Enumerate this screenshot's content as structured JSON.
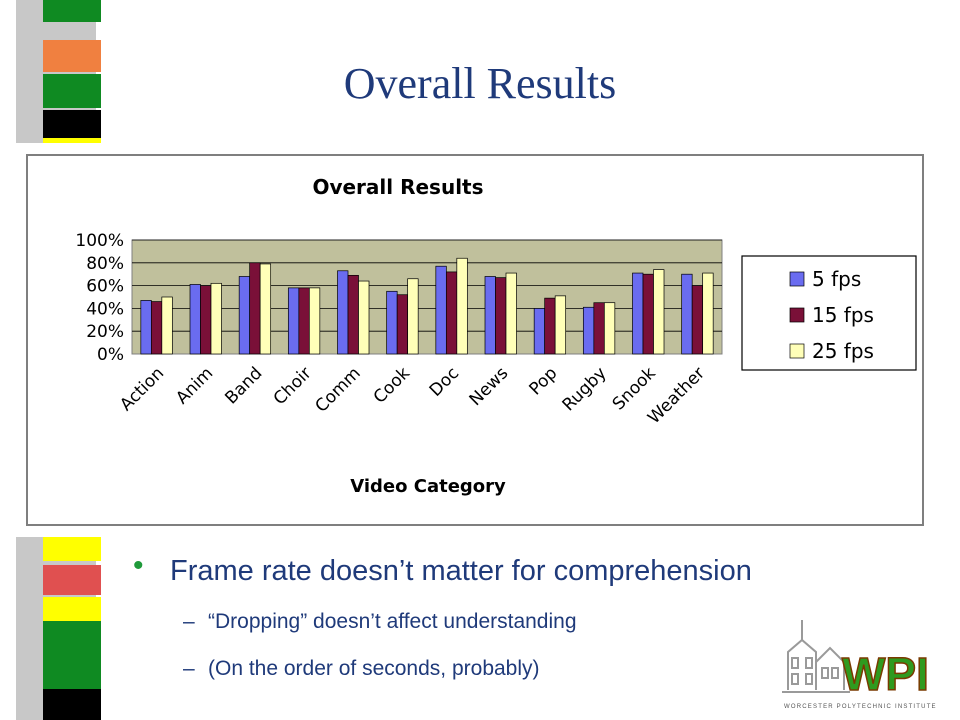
{
  "slide": {
    "title": "Overall Results",
    "bullet": "Frame rate doesn’t matter for comprehension",
    "sub_bullets": [
      "“Dropping” doesn’t affect understanding",
      "(On the order of seconds, probably)"
    ],
    "dash": "–",
    "bullet_mark": "•"
  },
  "logo": {
    "text": "WPI",
    "caption": "WORCESTER POLYTECHNIC INSTITUTE"
  },
  "colors": {
    "title": "#1f3a7a",
    "series": [
      "#6a6cf0",
      "#7a1038",
      "#ffffb8"
    ],
    "plot_bg": "#c0c09c"
  },
  "chart_data": {
    "type": "bar",
    "title": "Overall Results",
    "xlabel": "Video Category",
    "ylabel": "",
    "ylim": [
      0,
      100
    ],
    "yticks": [
      "0%",
      "20%",
      "40%",
      "60%",
      "80%",
      "100%"
    ],
    "categories": [
      "Action",
      "Anim",
      "Band",
      "Choir",
      "Comm",
      "Cook",
      "Doc",
      "News",
      "Pop",
      "Rugby",
      "Snook",
      "Weather"
    ],
    "series": [
      {
        "name": "5 fps",
        "values": [
          47,
          61,
          68,
          58,
          73,
          55,
          77,
          68,
          40,
          41,
          71,
          70
        ]
      },
      {
        "name": "15 fps",
        "values": [
          46,
          60,
          80,
          58,
          69,
          52,
          72,
          67,
          49,
          45,
          70,
          60
        ]
      },
      {
        "name": "25 fps",
        "values": [
          50,
          62,
          79,
          58,
          64,
          66,
          84,
          71,
          51,
          45,
          74,
          71
        ]
      }
    ],
    "legend": "right",
    "grid": true
  }
}
